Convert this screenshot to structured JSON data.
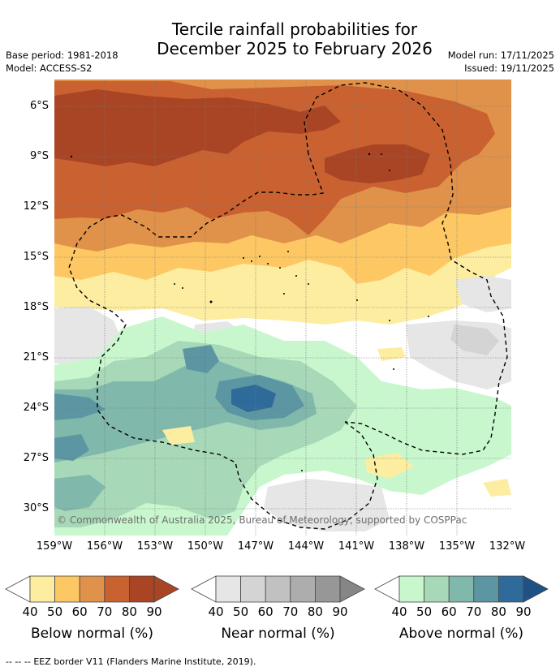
{
  "header": {
    "title_line1": "Tercile rainfall probabilities for",
    "title_line2": "December 2025 to February 2026",
    "base_period": "Base period: 1981-2018",
    "model": "Model: ACCESS-S2",
    "model_run": "Model run: 17/11/2025",
    "issued": "Issued: 19/11/2025"
  },
  "map": {
    "lat_labels": [
      "6°S",
      "9°S",
      "12°S",
      "15°S",
      "18°S",
      "21°S",
      "24°S",
      "27°S",
      "30°S"
    ],
    "lon_labels": [
      "159°W",
      "156°W",
      "153°W",
      "150°W",
      "147°W",
      "144°W",
      "141°W",
      "138°W",
      "135°W",
      "132°W"
    ],
    "credit": "© Commonwealth of Australia 2025, Bureau of Meteorology, supported by COSPPac",
    "colors": {
      "below": [
        "#fdeda0",
        "#fdc864",
        "#e0924a",
        "#c96230",
        "#a94524"
      ],
      "near": [
        "#e6e6e6",
        "#d4d4d4",
        "#c1c1c1",
        "#adadad",
        "#979797"
      ],
      "above": [
        "#c8f7cd",
        "#a7d9b8",
        "#80b8ac",
        "#5b96a2",
        "#2f6b9a",
        "#1e5284"
      ]
    }
  },
  "legend": {
    "ticks": [
      "40",
      "50",
      "60",
      "70",
      "80",
      "90"
    ],
    "below_label": "Below normal (%)",
    "near_label": "Near normal (%)",
    "above_label": "Above normal (%)"
  },
  "footer": {
    "dash_symbol": "-- -- --",
    "eez_text": "EEZ border V11 (Flanders Marine Institute, 2019)."
  }
}
